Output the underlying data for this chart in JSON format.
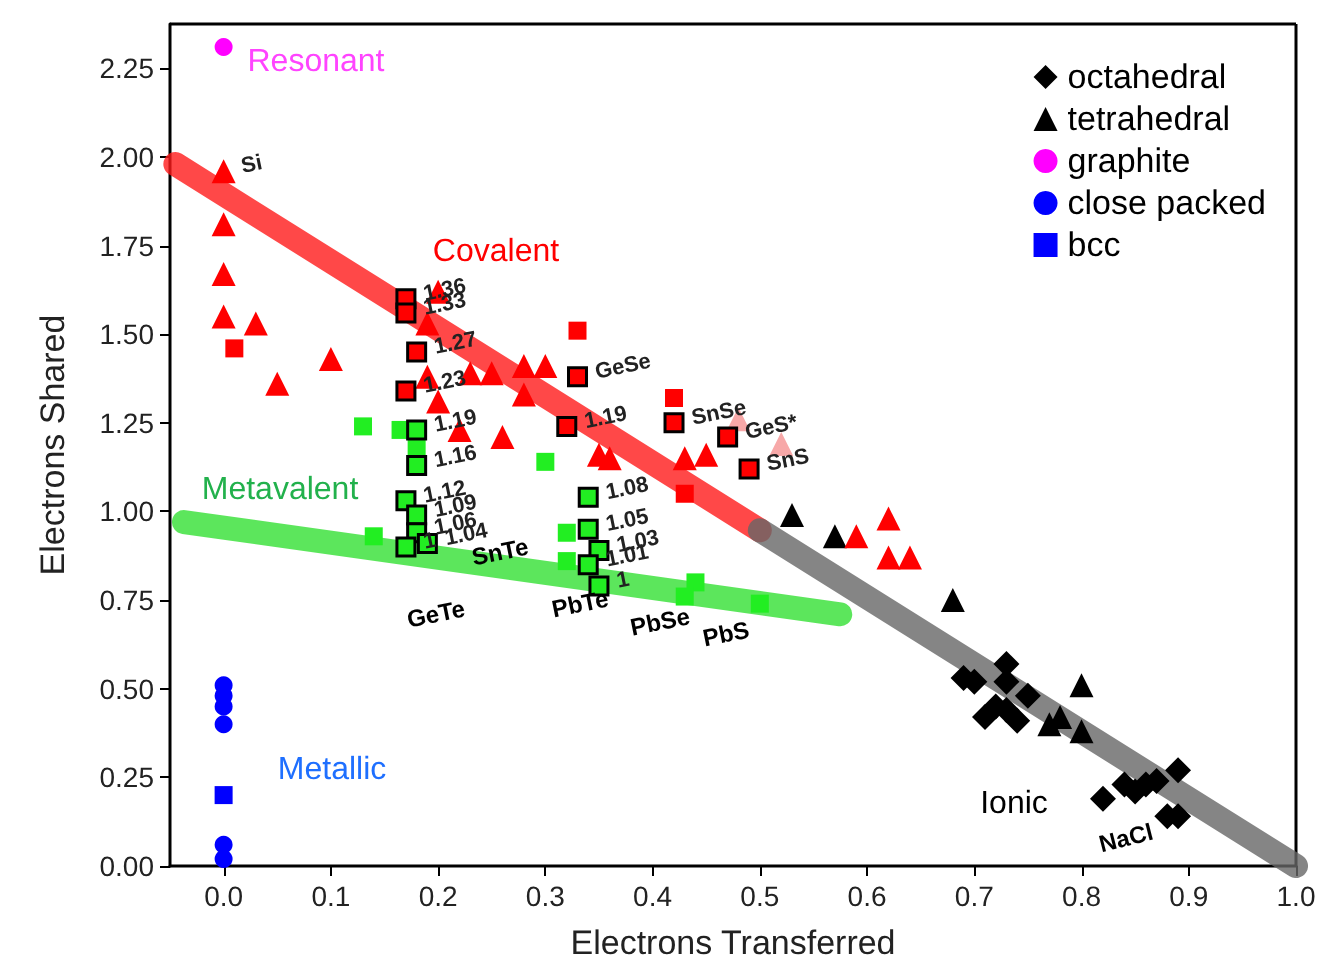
{
  "chart_data": {
    "type": "scatter",
    "xlabel": "Electrons Transferred",
    "ylabel": "Electrons Shared",
    "xlim": [
      -0.05,
      1.0
    ],
    "ylim": [
      0,
      2.375
    ],
    "xticks": [
      {
        "value": 0,
        "label": "0.0"
      },
      0.1,
      0.2,
      0.3,
      0.4,
      0.5,
      0.6,
      0.7,
      0.8,
      0.9,
      {
        "value": 1,
        "label": "1.0"
      }
    ],
    "yticks": [
      {
        "value": 0,
        "label": "0.00"
      },
      0.25,
      {
        "value": 0.5,
        "label": "0.50"
      },
      0.75,
      {
        "value": 1,
        "label": "1.00"
      },
      1.25,
      {
        "value": 1.5,
        "label": "1.50"
      },
      1.75,
      {
        "value": 2,
        "label": "2.00"
      },
      2.25
    ],
    "grid": false,
    "legend": "top right",
    "series": [
      {
        "type": "line",
        "color": "#ff1a1a",
        "x": [
          -0.045,
          0.5
        ],
        "values": [
          1.98,
          0.947
        ]
      },
      {
        "type": "line",
        "color": "#666666",
        "x": [
          0.5,
          1.0
        ],
        "values": [
          0.947,
          0.0
        ]
      },
      {
        "type": "line",
        "color": "#33e033",
        "x": [
          -0.037,
          0.575
        ],
        "values": [
          0.97,
          0.71
        ]
      },
      {
        "name": "octahedral",
        "color": "#000000",
        "marker": "diamond",
        "x": [
          0.69,
          0.7,
          0.73,
          0.73,
          0.75,
          0.72,
          0.71,
          0.74,
          0.73,
          0.82,
          0.84,
          0.85,
          0.86,
          0.87,
          0.89,
          0.88,
          0.89
        ],
        "values": [
          0.53,
          0.52,
          0.57,
          0.52,
          0.48,
          0.45,
          0.42,
          0.41,
          0.44,
          0.19,
          0.23,
          0.21,
          0.23,
          0.24,
          0.27,
          0.14,
          0.14
        ]
      },
      {
        "name": "tetrahedral",
        "color": "#000000",
        "marker": "triangle",
        "x": [
          0.53,
          0.57,
          0.68,
          0.8,
          0.77,
          0.8,
          0.78
        ],
        "values": [
          0.99,
          0.93,
          0.75,
          0.51,
          0.4,
          0.38,
          0.42
        ]
      },
      {
        "name": "graphite",
        "color": "#ff00ff",
        "marker": "circle",
        "x": [
          0
        ],
        "values": [
          2.31
        ]
      },
      {
        "name": "close packed",
        "color": "#0000ff",
        "marker": "circle",
        "x": [
          0,
          0,
          0,
          0,
          0,
          0
        ],
        "values": [
          0.51,
          0.48,
          0.45,
          0.4,
          0.06,
          0.02
        ]
      },
      {
        "name": "bcc",
        "color": "#0000ff",
        "marker": "square",
        "x": [
          0
        ],
        "values": [
          0.2
        ]
      },
      {
        "color": "#ff0000",
        "marker": "triangle",
        "x": [
          0,
          0,
          0,
          0,
          0.03,
          0.1,
          0.05,
          0.2,
          0.19,
          0.19,
          0.2,
          0.22,
          0.23,
          0.25,
          0.28,
          0.28,
          0.3,
          0.26,
          0.35,
          0.36,
          0.43,
          0.45,
          0.59,
          0.62,
          0.62,
          0.64
        ],
        "values": [
          1.96,
          1.81,
          1.67,
          1.55,
          1.53,
          1.43,
          1.36,
          1.62,
          1.53,
          1.38,
          1.31,
          1.23,
          1.39,
          1.39,
          1.41,
          1.33,
          1.41,
          1.21,
          1.16,
          1.15,
          1.15,
          1.16,
          0.93,
          0.98,
          0.87,
          0.87
        ]
      },
      {
        "color": "#f7a8a8",
        "marker": "triangle",
        "x": [
          0.48,
          0.52
        ],
        "values": [
          1.26,
          1.19
        ]
      },
      {
        "color": "#ff0000",
        "marker": "square",
        "x": [
          0.01,
          0.33,
          0.42,
          0.43
        ],
        "values": [
          1.46,
          1.51,
          1.32,
          1.05
        ]
      },
      {
        "color": "#22ee22",
        "marker": "square",
        "x": [
          0.13,
          0.165,
          0.18,
          0.3,
          0.14,
          0.32,
          0.32,
          0.44
        ],
        "values": [
          1.24,
          1.23,
          1.18,
          1.14,
          0.93,
          0.94,
          0.86,
          0.8
        ]
      },
      {
        "color": "#ff0000",
        "marker": "square",
        "x": [
          0.17,
          0.17,
          0.18,
          0.17,
          0.33,
          0.32,
          0.42,
          0.47,
          0.49
        ],
        "values": [
          1.6,
          1.56,
          1.45,
          1.34,
          1.38,
          1.24,
          1.25,
          1.21,
          1.12
        ]
      },
      {
        "color": "#22ee22",
        "marker": "square",
        "x": [
          0.18,
          0.18,
          0.17,
          0.18,
          0.18,
          0.19,
          0.17,
          0.34,
          0.34,
          0.35,
          0.34,
          0.35,
          0.43,
          0.5
        ],
        "values": [
          1.23,
          1.13,
          1.03,
          0.99,
          0.94,
          0.91,
          0.9,
          1.04,
          0.95,
          0.89,
          0.85,
          0.79,
          0.76,
          0.74
        ]
      }
    ],
    "annotations": [
      "Resonant",
      "Covalent",
      "Metavalent",
      "Metallic",
      "Ionic",
      "NaCl",
      "GeTe",
      "SnTe",
      "PbTe",
      "PbSe",
      "PbS",
      {
        "text": "Si",
        "x": 0,
        "y": 1.96
      },
      {
        "text": "1.36",
        "x": 0.17,
        "y": 1.6
      },
      {
        "text": "1.33",
        "x": 0.17,
        "y": 1.56
      },
      {
        "text": "1.27",
        "x": 0.18,
        "y": 1.45
      },
      {
        "text": "1.23",
        "x": 0.17,
        "y": 1.34
      },
      {
        "text": "GeSe",
        "x": 0.33,
        "y": 1.38
      },
      {
        "text": "1.19",
        "x": 0.32,
        "y": 1.24
      },
      {
        "text": "SnSe",
        "x": 0.42,
        "y": 1.25
      },
      {
        "text": "GeS*",
        "x": 0.47,
        "y": 1.21
      },
      {
        "text": "SnS",
        "x": 0.49,
        "y": 1.12
      },
      {
        "text": "1.19",
        "x": 0.18,
        "y": 1.23
      },
      {
        "text": "1.16",
        "x": 0.18,
        "y": 1.13
      },
      {
        "text": "1.12",
        "x": 0.17,
        "y": 1.03
      },
      {
        "text": "1.09",
        "x": 0.18,
        "y": 0.99
      },
      {
        "text": "1.06",
        "x": 0.18,
        "y": 0.94
      },
      {
        "text": "1.04",
        "x": 0.19,
        "y": 0.91
      },
      {
        "text": "1",
        "x": 0.17,
        "y": 0.9
      },
      {
        "text": "1.08",
        "x": 0.34,
        "y": 1.04
      },
      {
        "text": "1.05",
        "x": 0.34,
        "y": 0.95
      },
      {
        "text": "1.03",
        "x": 0.35,
        "y": 0.89
      },
      {
        "text": "1.01",
        "x": 0.34,
        "y": 0.85
      },
      {
        "text": "1",
        "x": 0.35,
        "y": 0.79
      }
    ]
  }
}
